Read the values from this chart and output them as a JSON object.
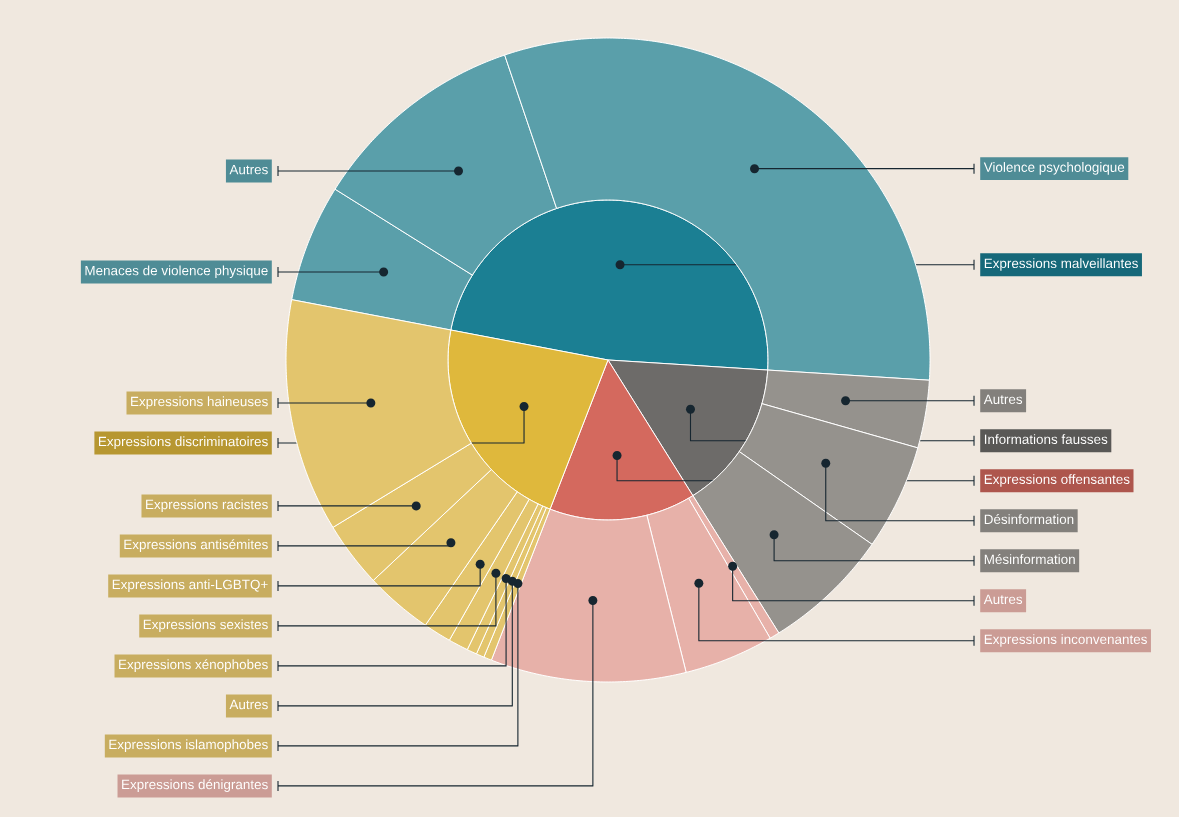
{
  "chart_data": [
    {
      "type": "pie",
      "categories": [
        "Expressions malveillantes",
        "Informations fausses",
        "Expressions offensantes",
        "Expressions discriminatoires"
      ],
      "values": [
        48.0,
        15.1,
        14.8,
        22.1
      ],
      "colors": [
        "#1b7f93",
        "#6d6b69",
        "#d4695e",
        "#dfb83c"
      ]
    },
    {
      "type": "donut",
      "categories": [
        "Menaces de violence physique",
        "Autres",
        "Violence psychologique",
        "Autres",
        "Désinformation",
        "Mésinformation",
        "Autres",
        "Expressions inconvenantes",
        "Expressions dénigrantes",
        "Expressions islamophobes",
        "Autres",
        "Expressions xénophobes",
        "Expressions sexistes",
        "Expressions anti-LGBTQ+",
        "Expressions antisémites",
        "Expressions racistes",
        "Expressions haineuses"
      ],
      "values": [
        5.9,
        10.9,
        31.2,
        3.4,
        5.3,
        6.4,
        0.5,
        4.5,
        9.8,
        0.4,
        0.4,
        0.5,
        1.0,
        1.4,
        3.4,
        3.3,
        11.7
      ],
      "colors": [
        "#5a9faa",
        "#5a9faa",
        "#5a9faa",
        "#95928d",
        "#95928d",
        "#95928d",
        "#e7b1a9",
        "#e7b1a9",
        "#e7b1a9",
        "#e3c56d",
        "#e3c56d",
        "#e3c56d",
        "#e3c56d",
        "#e3c56d",
        "#e3c56d",
        "#e3c56d",
        "#e3c56d"
      ]
    }
  ]
}
